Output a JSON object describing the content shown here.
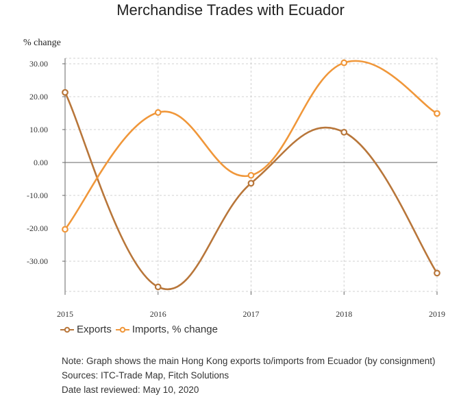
{
  "chart_data": {
    "type": "line",
    "title": "Merchandise Trades with Ecuador",
    "ylabel": "% change",
    "xlabel": "",
    "categories": [
      "2015",
      "2016",
      "2017",
      "2018",
      "2019"
    ],
    "yticks": [
      "30.00",
      "20.00",
      "10.00",
      "0.00",
      "-10.00",
      "-20.00",
      "-30.00"
    ],
    "ytick_values": [
      30,
      20,
      10,
      0,
      -10,
      -20,
      -30
    ],
    "ylim": [
      -38,
      32
    ],
    "grid": true,
    "legend_position": "bottom-left",
    "series": [
      {
        "name": "Exports",
        "values": [
          21.3,
          -37.8,
          -6.3,
          9.2,
          -33.6
        ],
        "color": "#b8763a"
      },
      {
        "name": "Imports, % change",
        "values": [
          -20.3,
          15.2,
          -3.9,
          30.3,
          14.9
        ],
        "color": "#f0973a"
      }
    ]
  },
  "notes": {
    "line1": "Note: Graph shows the main Hong Kong exports to/imports from Ecuador (by consignment)",
    "line2": "Sources: ITC-Trade Map, Fitch Solutions",
    "line3": "Date last reviewed: May 10, 2020"
  }
}
